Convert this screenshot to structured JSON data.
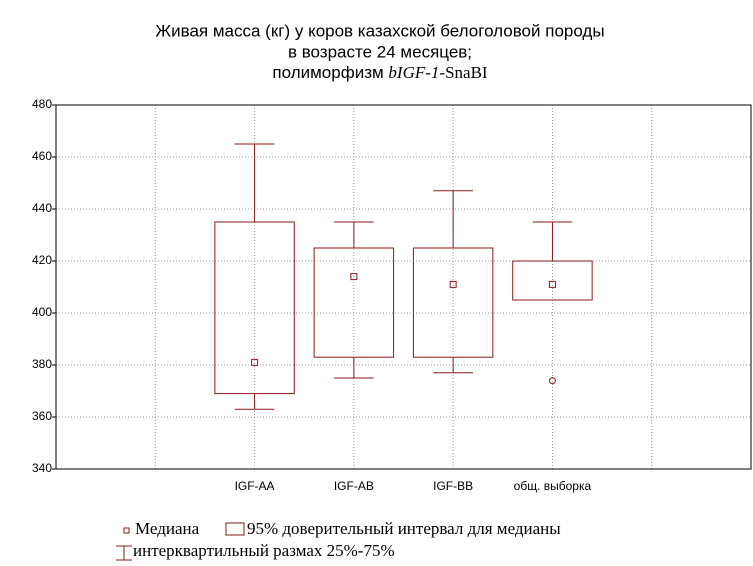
{
  "chart_data": {
    "type": "box",
    "title": [
      "Живая масса (кг) у коров казахской белоголовой породы",
      "в возрасте 24 месяцев;"
    ],
    "title_line3": [
      "полиморфизм ",
      "bIGF-1",
      "-SnaBI"
    ],
    "categories": [
      "IGF-AA",
      "IGF-AB",
      "IGF-BB",
      "общ. выборка"
    ],
    "median": [
      381,
      414,
      411,
      411
    ],
    "ci_low": [
      369,
      383,
      383,
      405
    ],
    "ci_high": [
      435,
      425,
      425,
      420
    ],
    "q1": [
      363,
      375,
      377,
      null
    ],
    "q3": [
      465,
      435,
      447,
      435
    ],
    "outliers": [
      null,
      null,
      null,
      374
    ],
    "color": "#8b1a1a",
    "ylim": [
      340,
      480
    ],
    "yticks": [
      340,
      360,
      380,
      400,
      420,
      440,
      460,
      480
    ],
    "grid": true,
    "legend": [
      "Медиана",
      "95% доверительный интервал для медианы",
      "интерквартильный размах 25%-75%"
    ]
  }
}
